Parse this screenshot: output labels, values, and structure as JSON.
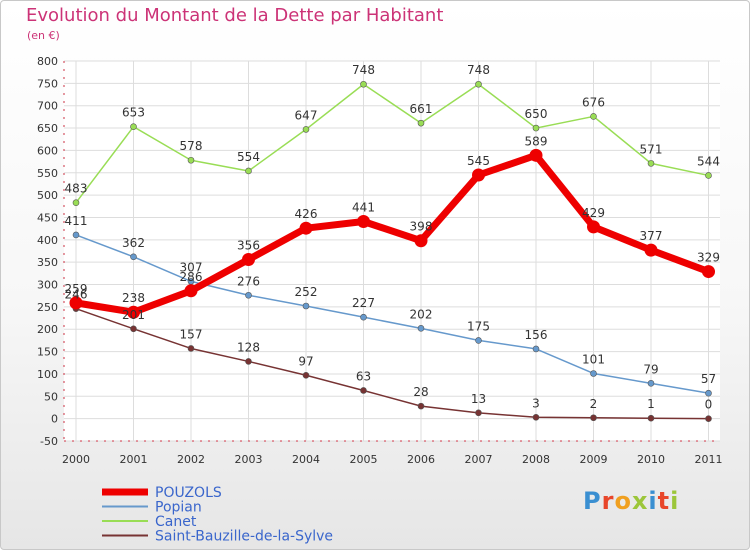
{
  "header": {
    "title": "Evolution du Montant de la Dette par Habitant",
    "subtitle": "(en €)"
  },
  "brand": {
    "logo_text": "Proxiti",
    "letter_colors": [
      "#3a8fd1",
      "#e8462a",
      "#f0a020",
      "#9cc63a",
      "#3a8fd1",
      "#e8462a",
      "#9cc63a"
    ]
  },
  "chart_data": {
    "type": "line",
    "title": "Evolution du Montant de la Dette par Habitant",
    "subtitle": "(en €)",
    "xlabel": "",
    "ylabel": "",
    "x": [
      "2000",
      "2001",
      "2002",
      "2003",
      "2004",
      "2005",
      "2006",
      "2007",
      "2008",
      "2009",
      "2010",
      "2011"
    ],
    "ylim": [
      -50,
      800
    ],
    "yticks": [
      -50,
      0,
      50,
      100,
      150,
      200,
      250,
      300,
      350,
      400,
      450,
      500,
      550,
      600,
      650,
      700,
      750,
      800
    ],
    "grid": true,
    "legend_position": "bottom-left",
    "series": [
      {
        "name": "POUZOLS",
        "color": "#ee0000",
        "width": 7,
        "point_size": 6.5,
        "values": [
          259,
          238,
          286,
          356,
          426,
          441,
          398,
          545,
          589,
          429,
          377,
          329
        ]
      },
      {
        "name": "Popian",
        "color": "#6699cc",
        "width": 1.5,
        "point_size": 3,
        "values": [
          411,
          362,
          307,
          276,
          252,
          227,
          202,
          175,
          156,
          101,
          79,
          57
        ]
      },
      {
        "name": "Canet",
        "color": "#99dd55",
        "width": 1.5,
        "point_size": 3,
        "values": [
          483,
          653,
          578,
          554,
          647,
          748,
          661,
          748,
          650,
          676,
          571,
          544
        ]
      },
      {
        "name": "Saint-Bauzille-de-la-Sylve",
        "color": "#773333",
        "width": 1.5,
        "point_size": 3,
        "values": [
          246,
          201,
          157,
          128,
          97,
          63,
          28,
          13,
          3,
          2,
          1,
          0
        ]
      }
    ]
  }
}
